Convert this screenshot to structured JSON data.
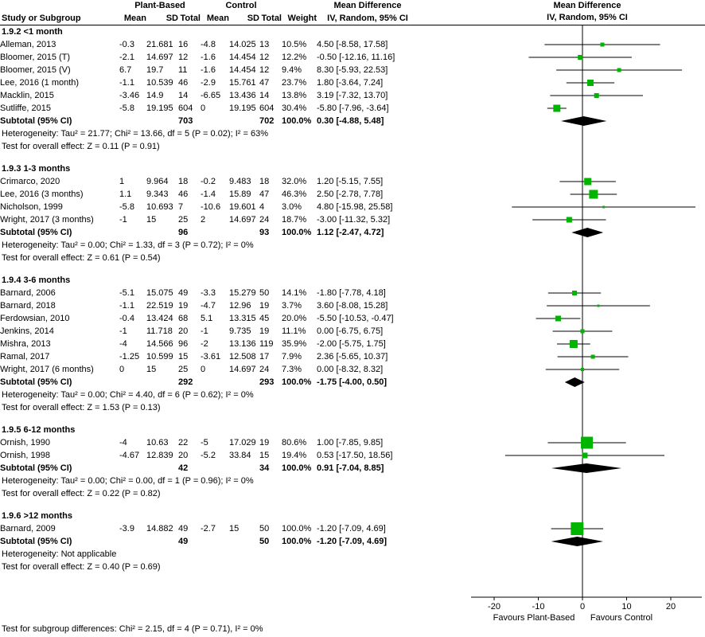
{
  "header": {
    "plant_based": "Plant-Based",
    "control": "Control",
    "mean_difference": "Mean Difference",
    "study_or_subgroup": "Study or Subgroup",
    "mean": "Mean",
    "sd": "SD",
    "total": "Total",
    "weight": "Weight",
    "iv_random": "IV, Random, 95% CI"
  },
  "plot_header": {
    "line1": "Mean Difference",
    "line2": "IV, Random, 95% CI"
  },
  "footer": {
    "subgroup_test": "Test for subgroup differences: Chi² = 2.15, df = 4 (P = 0.71), I² = 0%"
  },
  "chart_data": {
    "type": "scatter",
    "variant": "forest-plot-mean-difference",
    "effect_measure": "Mean Difference, IV, Random, 95% CI",
    "x_ticks": [
      -20,
      -10,
      0,
      10,
      20
    ],
    "x_range": [
      -25.2,
      27
    ],
    "grid": false,
    "favours_left": "Favours Plant-Based",
    "favours_right": "Favours Control",
    "marker_color": "#00b400",
    "diamond_color": "#000000",
    "line_color": "#000000",
    "groups": [
      {
        "label": "1.9.2 <1 month",
        "studies": [
          {
            "name": "Alleman, 2013",
            "mean_pb": -0.3,
            "sd_pb": 21.681,
            "total_pb": 16,
            "mean_c": -4.8,
            "sd_c": 14.025,
            "total_c": 13,
            "weight": "10.5%",
            "weight_value": 10.5,
            "md": 4.5,
            "ci_low": -8.58,
            "ci_high": 17.58,
            "ci_text": "4.50 [-8.58, 17.58]"
          },
          {
            "name": "Bloomer, 2015 (T)",
            "mean_pb": -2.1,
            "sd_pb": 14.697,
            "total_pb": 12,
            "mean_c": -1.6,
            "sd_c": 14.454,
            "total_c": 12,
            "weight": "12.2%",
            "weight_value": 12.2,
            "md": -0.5,
            "ci_low": -12.16,
            "ci_high": 11.16,
            "ci_text": "-0.50 [-12.16, 11.16]"
          },
          {
            "name": "Bloomer, 2015 (V)",
            "mean_pb": 6.7,
            "sd_pb": 19.7,
            "total_pb": 11,
            "mean_c": -1.6,
            "sd_c": 14.454,
            "total_c": 12,
            "weight": "9.4%",
            "weight_value": 9.4,
            "md": 8.3,
            "ci_low": -5.93,
            "ci_high": 22.53,
            "ci_text": "8.30 [-5.93, 22.53]"
          },
          {
            "name": "Lee, 2016 (1 month)",
            "mean_pb": -1.1,
            "sd_pb": 10.539,
            "total_pb": 46,
            "mean_c": -2.9,
            "sd_c": 15.761,
            "total_c": 47,
            "weight": "23.7%",
            "weight_value": 23.7,
            "md": 1.8,
            "ci_low": -3.64,
            "ci_high": 7.24,
            "ci_text": "1.80 [-3.64, 7.24]"
          },
          {
            "name": "Macklin, 2015",
            "mean_pb": -3.46,
            "sd_pb": 14.9,
            "total_pb": 14,
            "mean_c": -6.65,
            "sd_c": 13.436,
            "total_c": 14,
            "weight": "13.8%",
            "weight_value": 13.8,
            "md": 3.19,
            "ci_low": -7.32,
            "ci_high": 13.7,
            "ci_text": "3.19 [-7.32, 13.70]"
          },
          {
            "name": "Sutliffe, 2015",
            "mean_pb": -5.8,
            "sd_pb": 19.195,
            "total_pb": 604,
            "mean_c": 0,
            "sd_c": 19.195,
            "total_c": 604,
            "weight": "30.4%",
            "weight_value": 30.4,
            "md": -5.8,
            "ci_low": -7.96,
            "ci_high": -3.64,
            "ci_text": "-5.80 [-7.96, -3.64]"
          }
        ],
        "subtotal": {
          "label": "Subtotal (95% CI)",
          "total_pb": 703,
          "total_c": 702,
          "weight": "100.0%",
          "md": 0.3,
          "ci_low": -4.88,
          "ci_high": 5.48,
          "ci_text": "0.30 [-4.88, 5.48]"
        },
        "heterogeneity": "Heterogeneity: Tau² = 21.77; Chi² = 13.66, df = 5 (P = 0.02); I² = 63%",
        "overall_effect": "Test for overall effect: Z = 0.11 (P = 0.91)"
      },
      {
        "label": "1.9.3 1-3 months",
        "studies": [
          {
            "name": "Crimarco, 2020",
            "mean_pb": 1,
            "sd_pb": 9.964,
            "total_pb": 18,
            "mean_c": -0.2,
            "sd_c": 9.483,
            "total_c": 18,
            "weight": "32.0%",
            "weight_value": 32.0,
            "md": 1.2,
            "ci_low": -5.15,
            "ci_high": 7.55,
            "ci_text": "1.20 [-5.15, 7.55]"
          },
          {
            "name": "Lee, 2016 (3 months)",
            "mean_pb": 1.1,
            "sd_pb": 9.343,
            "total_pb": 46,
            "mean_c": -1.4,
            "sd_c": 15.89,
            "total_c": 47,
            "weight": "46.3%",
            "weight_value": 46.3,
            "md": 2.5,
            "ci_low": -2.78,
            "ci_high": 7.78,
            "ci_text": "2.50 [-2.78, 7.78]"
          },
          {
            "name": "Nicholson, 1999",
            "mean_pb": -5.8,
            "sd_pb": 10.693,
            "total_pb": 7,
            "mean_c": -10.6,
            "sd_c": 19.601,
            "total_c": 4,
            "weight": "3.0%",
            "weight_value": 3.0,
            "md": 4.8,
            "ci_low": -15.98,
            "ci_high": 25.58,
            "ci_text": "4.80 [-15.98, 25.58]"
          },
          {
            "name": "Wright, 2017 (3 months)",
            "mean_pb": -1,
            "sd_pb": 15,
            "total_pb": 25,
            "mean_c": 2,
            "sd_c": 14.697,
            "total_c": 24,
            "weight": "18.7%",
            "weight_value": 18.7,
            "md": -3.0,
            "ci_low": -11.32,
            "ci_high": 5.32,
            "ci_text": "-3.00 [-11.32, 5.32]"
          }
        ],
        "subtotal": {
          "label": "Subtotal (95% CI)",
          "total_pb": 96,
          "total_c": 93,
          "weight": "100.0%",
          "md": 1.12,
          "ci_low": -2.47,
          "ci_high": 4.72,
          "ci_text": "1.12 [-2.47, 4.72]"
        },
        "heterogeneity": "Heterogeneity: Tau² = 0.00; Chi² = 1.33, df = 3 (P = 0.72); I² = 0%",
        "overall_effect": "Test for overall effect: Z = 0.61 (P = 0.54)"
      },
      {
        "label": "1.9.4 3-6 months",
        "studies": [
          {
            "name": "Barnard, 2006",
            "mean_pb": -5.1,
            "sd_pb": 15.075,
            "total_pb": 49,
            "mean_c": -3.3,
            "sd_c": 15.279,
            "total_c": 50,
            "weight": "14.1%",
            "weight_value": 14.1,
            "md": -1.8,
            "ci_low": -7.78,
            "ci_high": 4.18,
            "ci_text": "-1.80 [-7.78, 4.18]"
          },
          {
            "name": "Barnard, 2018",
            "mean_pb": -1.1,
            "sd_pb": 22.519,
            "total_pb": 19,
            "mean_c": -4.7,
            "sd_c": 12.96,
            "total_c": 19,
            "weight": "3.7%",
            "weight_value": 3.7,
            "md": 3.6,
            "ci_low": -8.08,
            "ci_high": 15.28,
            "ci_text": "3.60 [-8.08, 15.28]"
          },
          {
            "name": "Ferdowsian, 2010",
            "mean_pb": -0.4,
            "sd_pb": 13.424,
            "total_pb": 68,
            "mean_c": 5.1,
            "sd_c": 13.315,
            "total_c": 45,
            "weight": "20.0%",
            "weight_value": 20.0,
            "md": -5.5,
            "ci_low": -10.53,
            "ci_high": -0.47,
            "ci_text": "-5.50 [-10.53, -0.47]"
          },
          {
            "name": "Jenkins, 2014",
            "mean_pb": -1,
            "sd_pb": 11.718,
            "total_pb": 20,
            "mean_c": -1,
            "sd_c": 9.735,
            "total_c": 19,
            "weight": "11.1%",
            "weight_value": 11.1,
            "md": 0.0,
            "ci_low": -6.75,
            "ci_high": 6.75,
            "ci_text": "0.00 [-6.75, 6.75]"
          },
          {
            "name": "Mishra, 2013",
            "mean_pb": -4,
            "sd_pb": 14.566,
            "total_pb": 96,
            "mean_c": -2,
            "sd_c": 13.136,
            "total_c": 119,
            "weight": "35.9%",
            "weight_value": 35.9,
            "md": -2.0,
            "ci_low": -5.75,
            "ci_high": 1.75,
            "ci_text": "-2.00 [-5.75, 1.75]"
          },
          {
            "name": "Ramal, 2017",
            "mean_pb": -1.25,
            "sd_pb": 10.599,
            "total_pb": 15,
            "mean_c": -3.61,
            "sd_c": 12.508,
            "total_c": 17,
            "weight": "7.9%",
            "weight_value": 7.9,
            "md": 2.36,
            "ci_low": -5.65,
            "ci_high": 10.37,
            "ci_text": "2.36 [-5.65, 10.37]"
          },
          {
            "name": "Wright, 2017 (6 months)",
            "mean_pb": 0,
            "sd_pb": 15,
            "total_pb": 25,
            "mean_c": 0,
            "sd_c": 14.697,
            "total_c": 24,
            "weight": "7.3%",
            "weight_value": 7.3,
            "md": 0.0,
            "ci_low": -8.32,
            "ci_high": 8.32,
            "ci_text": "0.00 [-8.32, 8.32]"
          }
        ],
        "subtotal": {
          "label": "Subtotal (95% CI)",
          "total_pb": 292,
          "total_c": 293,
          "weight": "100.0%",
          "md": -1.75,
          "ci_low": -4.0,
          "ci_high": 0.5,
          "ci_text": "-1.75 [-4.00, 0.50]"
        },
        "heterogeneity": "Heterogeneity: Tau² = 0.00; Chi² = 4.40, df = 6 (P = 0.62); I² = 0%",
        "overall_effect": "Test for overall effect: Z = 1.53 (P = 0.13)"
      },
      {
        "label": "1.9.5 6-12 months",
        "studies": [
          {
            "name": "Ornish, 1990",
            "mean_pb": -4,
            "sd_pb": 10.63,
            "total_pb": 22,
            "mean_c": -5,
            "sd_c": 17.029,
            "total_c": 19,
            "weight": "80.6%",
            "weight_value": 80.6,
            "md": 1.0,
            "ci_low": -7.85,
            "ci_high": 9.85,
            "ci_text": "1.00 [-7.85, 9.85]"
          },
          {
            "name": "Ornish, 1998",
            "mean_pb": -4.67,
            "sd_pb": 12.839,
            "total_pb": 20,
            "mean_c": -5.2,
            "sd_c": 33.84,
            "total_c": 15,
            "weight": "19.4%",
            "weight_value": 19.4,
            "md": 0.53,
            "ci_low": -17.5,
            "ci_high": 18.56,
            "ci_text": "0.53 [-17.50, 18.56]"
          }
        ],
        "subtotal": {
          "label": "Subtotal (95% CI)",
          "total_pb": 42,
          "total_c": 34,
          "weight": "100.0%",
          "md": 0.91,
          "ci_low": -7.04,
          "ci_high": 8.85,
          "ci_text": "0.91 [-7.04, 8.85]"
        },
        "heterogeneity": "Heterogeneity: Tau² = 0.00; Chi² = 0.00, df = 1 (P = 0.96); I² = 0%",
        "overall_effect": "Test for overall effect: Z = 0.22 (P = 0.82)"
      },
      {
        "label": "1.9.6 >12 months",
        "studies": [
          {
            "name": "Barnard, 2009",
            "mean_pb": -3.9,
            "sd_pb": 14.882,
            "total_pb": 49,
            "mean_c": -2.7,
            "sd_c": 15,
            "total_c": 50,
            "weight": "100.0%",
            "weight_value": 100.0,
            "md": -1.2,
            "ci_low": -7.09,
            "ci_high": 4.69,
            "ci_text": "-1.20 [-7.09, 4.69]"
          }
        ],
        "subtotal": {
          "label": "Subtotal (95% CI)",
          "total_pb": 49,
          "total_c": 50,
          "weight": "100.0%",
          "md": -1.2,
          "ci_low": -7.09,
          "ci_high": 4.69,
          "ci_text": "-1.20 [-7.09, 4.69]"
        },
        "heterogeneity": "Heterogeneity: Not applicable",
        "overall_effect": "Test for overall effect: Z = 0.40 (P = 0.69)"
      }
    ]
  }
}
